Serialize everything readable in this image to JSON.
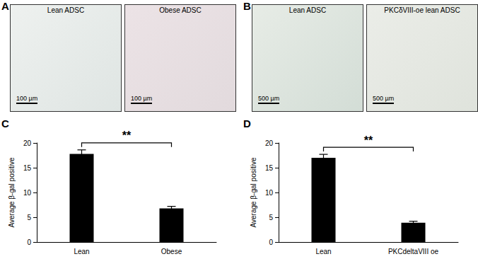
{
  "panels": [
    {
      "label": "A",
      "images": [
        {
          "title": "Lean ADSC",
          "scale_bar": "100 µm"
        },
        {
          "title": "Obese ADSC",
          "scale_bar": "100 µm"
        }
      ]
    },
    {
      "label": "B",
      "images": [
        {
          "title": "Lean ADSC",
          "scale_bar": "500 µm"
        },
        {
          "title": "PKCδVIII-oe lean ADSC",
          "scale_bar": "500 µm"
        }
      ]
    }
  ],
  "chart_data": [
    {
      "panel": "C",
      "type": "bar",
      "categories": [
        "Lean",
        "Obese"
      ],
      "values": [
        17.8,
        6.8
      ],
      "errors": [
        0.8,
        0.4
      ],
      "color": "#000000",
      "y_label": "Average β-gal positive",
      "ylim": [
        0,
        20
      ],
      "yticks": [
        0,
        5,
        10,
        15,
        20
      ],
      "grid": false,
      "annotations": [
        {
          "text": "**",
          "from": 0,
          "to": 1
        }
      ]
    },
    {
      "panel": "D",
      "type": "bar",
      "categories": [
        "Lean",
        "PKCdeltaVIII oe"
      ],
      "values": [
        17.0,
        3.9
      ],
      "errors": [
        0.7,
        0.3
      ],
      "color": "#000000",
      "y_label": "Average β-gal positive",
      "ylim": [
        0,
        20
      ],
      "yticks": [
        0,
        5,
        10,
        15,
        20
      ],
      "grid": false,
      "annotations": [
        {
          "text": "**",
          "from": 0,
          "to": 1
        }
      ]
    }
  ]
}
